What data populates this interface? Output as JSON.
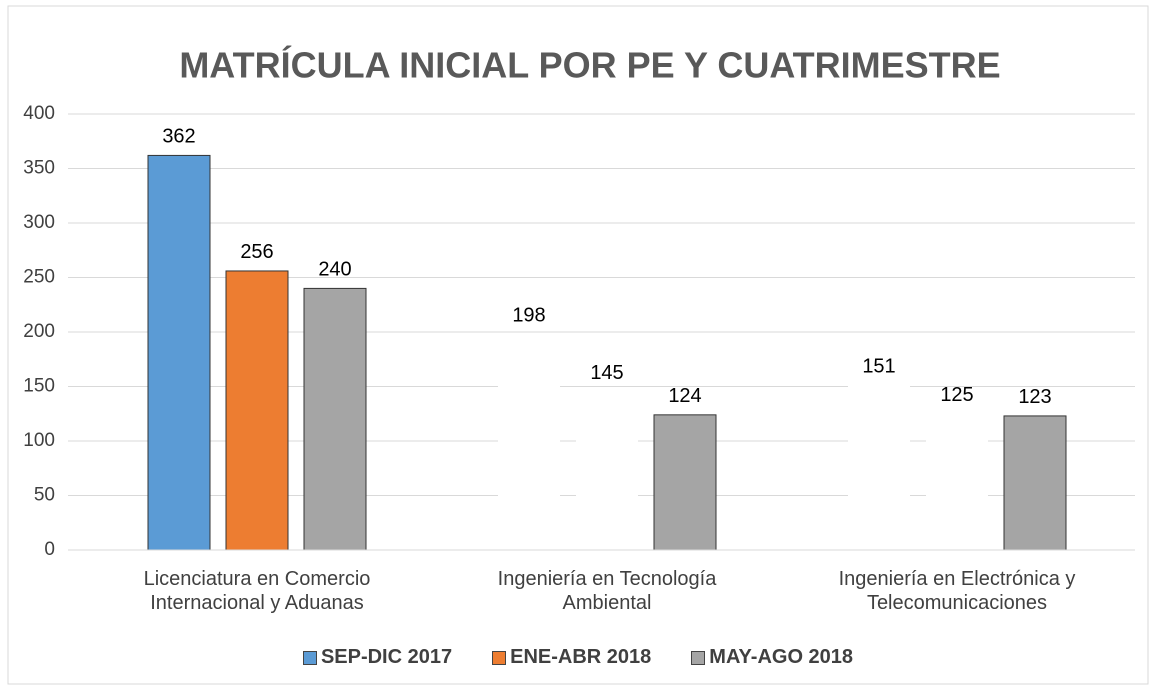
{
  "chart_data": {
    "type": "bar",
    "title": "MATRÍCULA INICIAL POR PE Y CUATRIMESTRE",
    "categories": [
      "Licenciatura en Comercio Internacional y Aduanas",
      "Ingeniería en Tecnología Ambiental",
      "Ingeniería en Electrónica y Telecomunicaciones"
    ],
    "series": [
      {
        "name": "SEP-DIC 2017",
        "color": "#5b9bd5",
        "colors": [
          "#5b9bd5",
          "#ffffff",
          "#ffffff"
        ],
        "values": [
          362,
          198,
          151
        ]
      },
      {
        "name": "ENE-ABR 2018",
        "color": "#ed7d31",
        "colors": [
          "#ed7d31",
          "#ffffff",
          "#ffffff"
        ],
        "values": [
          256,
          145,
          125
        ]
      },
      {
        "name": "MAY-AGO 2018",
        "color": "#a5a5a5",
        "colors": [
          "#a5a5a5",
          "#a5a5a5",
          "#a5a5a5"
        ],
        "values": [
          240,
          124,
          123
        ]
      }
    ],
    "ylim": [
      0,
      400
    ],
    "yticks": [
      0,
      50,
      100,
      150,
      200,
      250,
      300,
      350,
      400
    ],
    "grid": true,
    "legend": "bottom"
  }
}
